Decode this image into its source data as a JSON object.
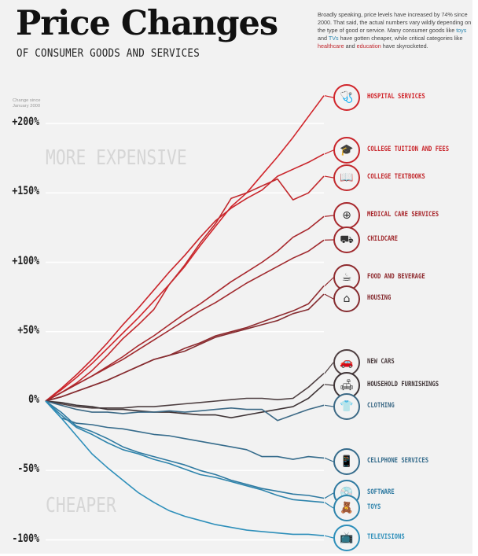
{
  "header": {
    "title": "Price Changes",
    "subtitle": "OF CONSUMER GOODS AND SERVICES",
    "intro_parts": [
      {
        "text": "Broadly speaking, price levels have increased by 74% since 2000. That said, the actual numbers vary wildly depending on the type of good or service. Many consumer goods like ",
        "style": "normal"
      },
      {
        "text": "toys",
        "style": "blue"
      },
      {
        "text": " and ",
        "style": "normal"
      },
      {
        "text": "TVs",
        "style": "blue"
      },
      {
        "text": " have gotten cheaper, while critical categories like ",
        "style": "normal"
      },
      {
        "text": "healthcare",
        "style": "red"
      },
      {
        "text": " and ",
        "style": "normal"
      },
      {
        "text": "education",
        "style": "red"
      },
      {
        "text": " have skyrocketed.",
        "style": "normal"
      }
    ]
  },
  "colors": {
    "background": "#f2f2f2",
    "red": "#c9252b",
    "dark_red": "#8b2a2e",
    "dark_gray": "#4a3c3e",
    "blue_gray": "#3d6a86",
    "blue": "#2e8bb3",
    "zone_text": "#d6d6d6",
    "intro_blue": "#2d88b0",
    "intro_red": "#c0272d"
  },
  "chart_data": {
    "type": "line",
    "title": "Price Changes of Consumer Goods and Services",
    "ylabel": "Change since January 2000",
    "xlabel": "",
    "x_range": [
      2000,
      2016
    ],
    "ylim": [
      -100,
      220
    ],
    "yticks": [
      200,
      150,
      100,
      50,
      0,
      -50,
      -100
    ],
    "ytick_labels": [
      "+200%",
      "+150%",
      "+100%",
      "+50%",
      "0%",
      "-50%",
      "-100%"
    ],
    "grid": true,
    "zone_labels": {
      "upper": "MORE EXPENSIVE",
      "lower": "CHEAPER"
    },
    "series": [
      {
        "name": "HOSPITAL SERVICES",
        "icon": "hospital-iv-icon",
        "glyph": "🩺",
        "color": "#d1262c",
        "values": [
          0,
          8,
          17,
          27,
          38,
          49,
          60,
          72,
          84,
          97,
          112,
          126,
          140,
          150,
          163,
          176,
          190,
          205,
          220
        ]
      },
      {
        "name": "COLLEGE TUITION AND FEES",
        "icon": "graduation-cap-icon",
        "glyph": "🎓",
        "color": "#c9252b",
        "values": [
          0,
          9,
          19,
          30,
          42,
          55,
          67,
          80,
          93,
          105,
          118,
          130,
          139,
          146,
          152,
          162,
          167,
          172,
          178
        ]
      },
      {
        "name": "COLLEGE TEXTBOOKS",
        "icon": "book-icon",
        "glyph": "📖",
        "color": "#c22a2e",
        "values": [
          0,
          6,
          13,
          22,
          33,
          45,
          55,
          66,
          84,
          98,
          114,
          128,
          146,
          150,
          155,
          160,
          145,
          150,
          162
        ]
      },
      {
        "name": "MEDICAL CARE SERVICES",
        "icon": "medical-bag-icon",
        "glyph": "⊕",
        "color": "#a8282d",
        "values": [
          0,
          6,
          12,
          18,
          25,
          32,
          40,
          47,
          55,
          63,
          70,
          78,
          86,
          93,
          100,
          108,
          118,
          124,
          133
        ]
      },
      {
        "name": "CHILDCARE",
        "icon": "stroller-icon",
        "glyph": "⛟",
        "color": "#a02a2e",
        "values": [
          0,
          6,
          12,
          18,
          24,
          30,
          37,
          44,
          51,
          58,
          65,
          71,
          78,
          85,
          91,
          97,
          103,
          108,
          116
        ]
      },
      {
        "name": "FOOD AND BEVERAGE",
        "icon": "food-icon",
        "glyph": "☕",
        "color": "#8f2b2f",
        "values": [
          0,
          3,
          7,
          11,
          15,
          20,
          25,
          30,
          33,
          38,
          42,
          47,
          50,
          53,
          57,
          61,
          65,
          70,
          83
        ]
      },
      {
        "name": "HOUSING",
        "icon": "house-icon",
        "glyph": "⌂",
        "color": "#852c30",
        "values": [
          0,
          3,
          7,
          11,
          15,
          20,
          25,
          30,
          33,
          36,
          41,
          46,
          49,
          52,
          55,
          58,
          63,
          66,
          77
        ]
      },
      {
        "name": "NEW CARS",
        "icon": "car-icon",
        "glyph": "🚗",
        "color": "#4e3f41",
        "values": [
          0,
          -2,
          -4,
          -5,
          -5,
          -5,
          -4,
          -4,
          -3,
          -2,
          -1,
          0,
          1,
          2,
          2,
          1,
          2,
          10,
          20
        ]
      },
      {
        "name": "HOUSEHOLD FURNISHINGS",
        "icon": "sofa-icon",
        "glyph": "🛋",
        "color": "#3f3436",
        "values": [
          0,
          -1,
          -3,
          -4,
          -6,
          -6,
          -7,
          -8,
          -8,
          -9,
          -10,
          -10,
          -12,
          -10,
          -8,
          -6,
          -4,
          2,
          12
        ]
      },
      {
        "name": "CLOTHING",
        "icon": "shirt-icon",
        "glyph": "👕",
        "color": "#3d6a86",
        "values": [
          0,
          -3,
          -6,
          -8,
          -8,
          -9,
          -8,
          -8,
          -7,
          -8,
          -7,
          -6,
          -5,
          -6,
          -6,
          -14,
          -10,
          -6,
          -3
        ]
      },
      {
        "name": "CELLPHONE SERVICES",
        "icon": "phone-icon",
        "glyph": "📱",
        "color": "#366c8c",
        "values": [
          0,
          -12,
          -16,
          -17,
          -19,
          -20,
          -22,
          -24,
          -25,
          -27,
          -29,
          -31,
          -33,
          -35,
          -40,
          -40,
          -42,
          -40,
          -41
        ]
      },
      {
        "name": "SOFTWARE",
        "icon": "software-box-icon",
        "glyph": "💿",
        "color": "#2f7aa1",
        "values": [
          0,
          -8,
          -18,
          -22,
          -27,
          -33,
          -37,
          -40,
          -43,
          -46,
          -50,
          -53,
          -57,
          -60,
          -63,
          -65,
          -67,
          -68,
          -70
        ]
      },
      {
        "name": "TOYS",
        "icon": "toy-icon",
        "glyph": "🧸",
        "color": "#2e84ac",
        "values": [
          0,
          -10,
          -19,
          -24,
          -30,
          -35,
          -38,
          -42,
          -45,
          -49,
          -53,
          -55,
          -58,
          -61,
          -64,
          -68,
          -71,
          -72,
          -73
        ]
      },
      {
        "name": "TELEVISIONS",
        "icon": "television-icon",
        "glyph": "📺",
        "color": "#2e8fba",
        "values": [
          0,
          -12,
          -25,
          -38,
          -48,
          -57,
          -66,
          -73,
          -79,
          -83,
          -86,
          -89,
          -91,
          -93,
          -94,
          -95,
          -96,
          -96,
          -97
        ]
      }
    ]
  }
}
